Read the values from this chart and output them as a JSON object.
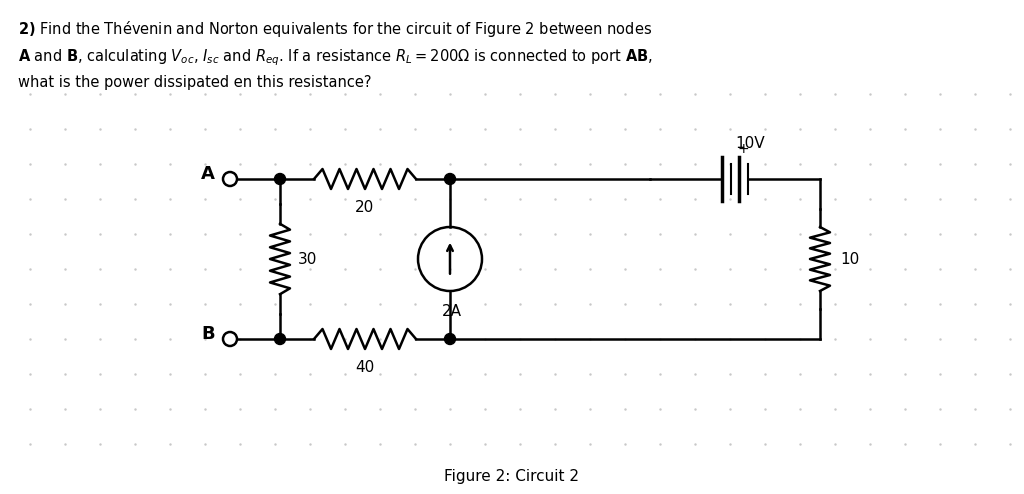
{
  "title_text": "2) Find the Thévenin and Norton equivalents for the circuit of Figure 2 between nodes\n\\textbf{A} and \\textbf{B}, calculating $V_{oc}$, $I_{sc}$ and $R_{eq}$. If a resistance $R_L = 200\\Omega$ is connected to port \\textbf{AB},\nwhat is the power dissipated en this resistance?",
  "figure_caption": "Figure 2: Circuit 2",
  "background_color": "#ffffff",
  "grid_color": "#d0d0d0",
  "node_A_label": "A",
  "node_B_label": "B",
  "R1_label": "20",
  "R2_label": "30",
  "R3_label": "40",
  "R4_label": "10",
  "V_label": "10V",
  "I_label": "2A"
}
